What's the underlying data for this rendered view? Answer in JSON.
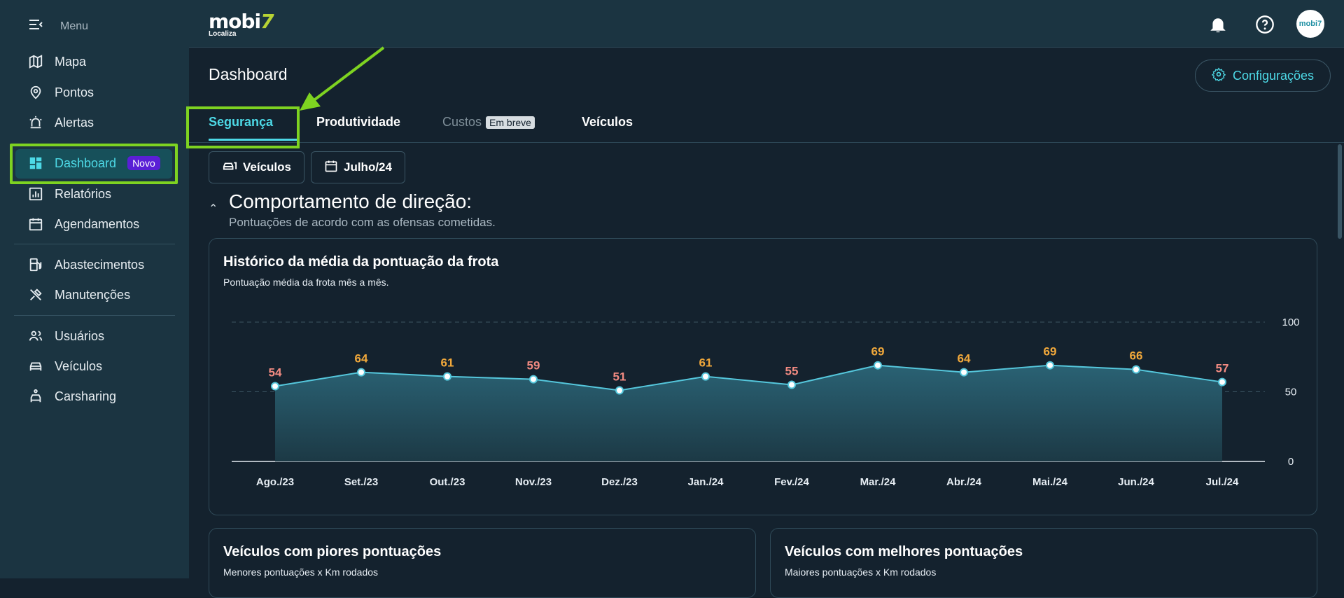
{
  "sidebar": {
    "menu_label": "Menu",
    "items": [
      {
        "label": "Mapa",
        "icon": "map-icon"
      },
      {
        "label": "Pontos",
        "icon": "pin-icon"
      },
      {
        "label": "Alertas",
        "icon": "siren-icon"
      },
      {
        "label": "Dashboard",
        "icon": "dashboard-icon",
        "badge": "Novo",
        "active": true
      },
      {
        "label": "Relatórios",
        "icon": "report-icon"
      },
      {
        "label": "Agendamentos",
        "icon": "calendar-icon"
      },
      {
        "label": "Abastecimentos",
        "icon": "fuel-icon"
      },
      {
        "label": "Manutenções",
        "icon": "tools-icon"
      },
      {
        "label": "Usuários",
        "icon": "users-icon"
      },
      {
        "label": "Veículos",
        "icon": "car-icon"
      },
      {
        "label": "Carsharing",
        "icon": "carsharing-icon"
      }
    ]
  },
  "topbar": {
    "brand": "mobi",
    "brand_accent": "7",
    "brand_sub": "Localiza",
    "avatar_text": "mobi7"
  },
  "header": {
    "title": "Dashboard",
    "config_label": "Configurações"
  },
  "tabs": [
    {
      "label": "Segurança",
      "active": true
    },
    {
      "label": "Produtividade"
    },
    {
      "label": "Custos",
      "badge": "Em breve",
      "disabled": true
    },
    {
      "label": "Veículos"
    }
  ],
  "filters": {
    "vehicles_label": "Veículos",
    "period_label": "Julho/24"
  },
  "section": {
    "title": "Comportamento de direção:",
    "subtitle": "Pontuações de acordo com as ofensas cometidas."
  },
  "chart_card": {
    "title": "Histórico da média da pontuação da frota",
    "subtitle": "Pontuação média da frota mês a mês."
  },
  "bottom_cards": {
    "worst_title": "Veículos com piores pontuações",
    "worst_sub": "Menores pontuações x Km rodados",
    "best_title": "Veículos com melhores pontuações",
    "best_sub": "Maiores pontuações x Km rodados"
  },
  "chart_data": {
    "type": "area",
    "categories": [
      "Ago./23",
      "Set./23",
      "Out./23",
      "Nov./23",
      "Dez./23",
      "Jan./24",
      "Fev./24",
      "Mar./24",
      "Abr./24",
      "Mai./24",
      "Jun./24",
      "Jul./24"
    ],
    "values": [
      54,
      64,
      61,
      59,
      51,
      61,
      55,
      69,
      64,
      69,
      66,
      57
    ],
    "ylim": [
      0,
      100
    ],
    "yticks": [
      0,
      50,
      100
    ],
    "y_axis_side": "right",
    "grid": true,
    "colors": {
      "line": "#55c7dc",
      "label_low": "#f28b82",
      "label_high": "#f2a93b",
      "fill_top": "#2a6274",
      "fill_bottom": "#1c3945"
    }
  },
  "colors": {
    "accent": "#4dd9e6",
    "highlight": "#7ed321",
    "badge": "#5a1fd6"
  }
}
